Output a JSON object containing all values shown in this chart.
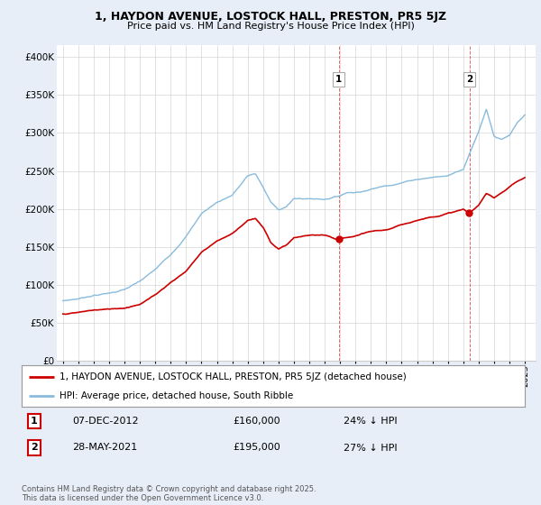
{
  "title": "1, HAYDON AVENUE, LOSTOCK HALL, PRESTON, PR5 5JZ",
  "subtitle": "Price paid vs. HM Land Registry's House Price Index (HPI)",
  "bg_color": "#e8eef8",
  "plot_bg": "#ffffff",
  "hpi_color": "#88bbdd",
  "price_color": "#cc0000",
  "annotation1": {
    "label": "1",
    "date": "07-DEC-2012",
    "price": "£160,000",
    "note": "24% ↓ HPI",
    "x_year": 2012.92
  },
  "annotation2": {
    "label": "2",
    "date": "28-MAY-2021",
    "price": "£195,000",
    "note": "27% ↓ HPI",
    "x_year": 2021.41
  },
  "legend_line1": "1, HAYDON AVENUE, LOSTOCK HALL, PRESTON, PR5 5JZ (detached house)",
  "legend_line2": "HPI: Average price, detached house, South Ribble",
  "footer": "Contains HM Land Registry data © Crown copyright and database right 2025.\nThis data is licensed under the Open Government Licence v3.0.",
  "yticks": [
    0,
    50000,
    100000,
    150000,
    200000,
    250000,
    300000,
    350000,
    400000
  ],
  "ylabels": [
    "£0",
    "£50K",
    "£100K",
    "£150K",
    "£200K",
    "£250K",
    "£300K",
    "£350K",
    "£400K"
  ],
  "ylim": [
    0,
    415000
  ],
  "xlim_start": 1994.6,
  "xlim_end": 2025.7,
  "hpi_anchors_y": [
    1995.0,
    1996.0,
    1997.0,
    1998.0,
    1999.0,
    2000.0,
    2001.0,
    2002.0,
    2003.0,
    2004.0,
    2005.0,
    2006.0,
    2007.0,
    2007.5,
    2008.0,
    2008.5,
    2009.0,
    2009.5,
    2010.0,
    2011.0,
    2012.0,
    2013.0,
    2013.5,
    2014.0,
    2015.0,
    2016.0,
    2017.0,
    2018.0,
    2019.0,
    2020.0,
    2020.5,
    2021.0,
    2021.5,
    2022.0,
    2022.5,
    2023.0,
    2023.5,
    2024.0,
    2024.5,
    2025.0
  ],
  "hpi_anchors_v": [
    79000,
    82000,
    87000,
    90000,
    95000,
    105000,
    120000,
    140000,
    165000,
    195000,
    210000,
    220000,
    245000,
    248000,
    230000,
    210000,
    200000,
    205000,
    215000,
    215000,
    215000,
    220000,
    225000,
    225000,
    230000,
    235000,
    240000,
    245000,
    248000,
    250000,
    255000,
    260000,
    285000,
    310000,
    340000,
    305000,
    300000,
    305000,
    320000,
    330000
  ],
  "price_anchors_y": [
    1995.0,
    1996.0,
    1997.0,
    1998.0,
    1999.0,
    2000.0,
    2001.0,
    2002.0,
    2003.0,
    2004.0,
    2005.0,
    2006.0,
    2007.0,
    2007.5,
    2008.0,
    2008.5,
    2009.0,
    2009.5,
    2010.0,
    2011.0,
    2012.0,
    2012.92,
    2013.0,
    2013.5,
    2014.0,
    2015.0,
    2016.0,
    2017.0,
    2018.0,
    2019.0,
    2020.0,
    2021.0,
    2021.41,
    2022.0,
    2022.5,
    2023.0,
    2023.5,
    2024.0,
    2024.5,
    2025.0
  ],
  "price_anchors_v": [
    62000,
    64000,
    67000,
    68000,
    70000,
    76000,
    88000,
    105000,
    120000,
    145000,
    160000,
    170000,
    188000,
    190000,
    178000,
    158000,
    150000,
    155000,
    165000,
    168000,
    168000,
    160000,
    162000,
    163000,
    165000,
    170000,
    172000,
    178000,
    185000,
    190000,
    195000,
    200000,
    195000,
    205000,
    220000,
    215000,
    222000,
    230000,
    237000,
    242000
  ]
}
